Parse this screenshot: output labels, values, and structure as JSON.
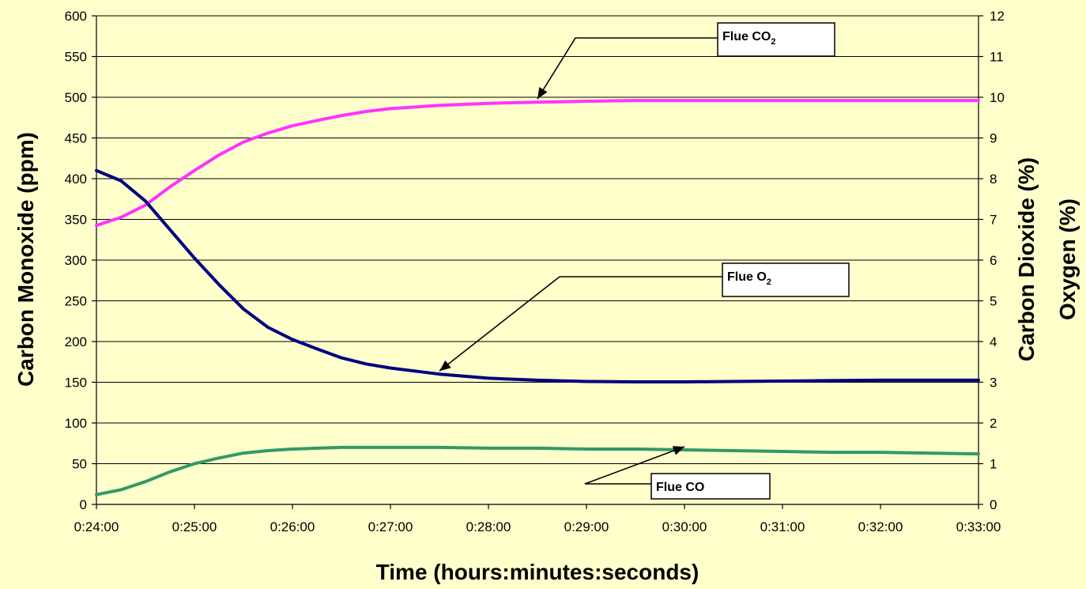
{
  "chart_data": {
    "type": "line",
    "xlabel": "Time (hours:minutes:seconds)",
    "ylabel_left": "Carbon Monoxide (ppm)",
    "ylabel_right_line1": "Carbon Dioxide (%)",
    "ylabel_right_line2": "Oxygen (%)",
    "x_ticks": [
      "0:24:00",
      "0:25:00",
      "0:26:00",
      "0:27:00",
      "0:28:00",
      "0:29:00",
      "0:30:00",
      "0:31:00",
      "0:32:00",
      "0:33:00"
    ],
    "x_range": [
      "0:24:00",
      "0:33:00"
    ],
    "ylim_left": [
      0,
      600
    ],
    "yticks_left": [
      0,
      50,
      100,
      150,
      200,
      250,
      300,
      350,
      400,
      450,
      500,
      550,
      600
    ],
    "ylim_right": [
      0,
      12
    ],
    "yticks_right": [
      0,
      1,
      2,
      3,
      4,
      5,
      6,
      7,
      8,
      9,
      10,
      11,
      12
    ],
    "grid": "horizontal",
    "x": [
      "0:24:00",
      "0:24:15",
      "0:24:30",
      "0:24:45",
      "0:25:00",
      "0:25:15",
      "0:25:30",
      "0:25:45",
      "0:26:00",
      "0:26:15",
      "0:26:30",
      "0:26:45",
      "0:27:00",
      "0:27:30",
      "0:28:00",
      "0:28:30",
      "0:29:00",
      "0:29:30",
      "0:30:00",
      "0:30:30",
      "0:31:00",
      "0:31:30",
      "0:32:00",
      "0:32:30",
      "0:33:00"
    ],
    "series": [
      {
        "name": "Flue CO2",
        "axis": "right",
        "color": "#FF33FF",
        "values": [
          6.85,
          7.05,
          7.35,
          7.8,
          8.2,
          8.58,
          8.9,
          9.12,
          9.3,
          9.43,
          9.55,
          9.65,
          9.72,
          9.8,
          9.85,
          9.88,
          9.9,
          9.92,
          9.92,
          9.92,
          9.92,
          9.92,
          9.92,
          9.92,
          9.92
        ]
      },
      {
        "name": "Flue O2",
        "axis": "right",
        "color": "#000080",
        "values": [
          8.2,
          7.95,
          7.45,
          6.75,
          6.05,
          5.4,
          4.8,
          4.35,
          4.05,
          3.82,
          3.6,
          3.45,
          3.35,
          3.2,
          3.1,
          3.05,
          3.02,
          3.01,
          3.01,
          3.02,
          3.03,
          3.04,
          3.05,
          3.05,
          3.05
        ]
      },
      {
        "name": "Flue CO",
        "axis": "left",
        "color": "#339966",
        "values": [
          12,
          18,
          28,
          40,
          50,
          57,
          63,
          66,
          68,
          69,
          70,
          70,
          70,
          70,
          69,
          69,
          68,
          68,
          67,
          66,
          65,
          64,
          64,
          63,
          62
        ]
      }
    ],
    "callouts": [
      {
        "text": "Flue CO",
        "sub": "2",
        "series": "Flue CO2"
      },
      {
        "text": "Flue O",
        "sub": "2",
        "series": "Flue O2"
      },
      {
        "text": "Flue CO",
        "sub": "",
        "series": "Flue CO"
      }
    ]
  }
}
